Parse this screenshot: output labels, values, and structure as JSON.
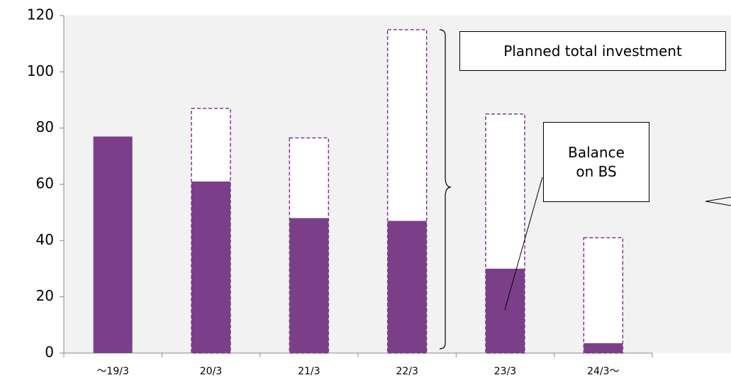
{
  "chart_data": {
    "type": "bar",
    "categories": [
      "～19/3",
      "20/3",
      "21/3",
      "22/3",
      "23/3",
      "24/3～"
    ],
    "series": [
      {
        "name": "Balance on BS",
        "color": "#7b3f8a",
        "values": [
          77,
          61,
          48,
          47,
          30,
          3.5
        ]
      },
      {
        "name": "Planned total investment",
        "color": "#7b3f8a",
        "values": [
          null,
          87,
          76.5,
          115,
          85,
          41
        ]
      }
    ],
    "ylim": [
      0,
      120
    ],
    "yticks": [
      0,
      20,
      40,
      60,
      80,
      100,
      120
    ]
  }
}
